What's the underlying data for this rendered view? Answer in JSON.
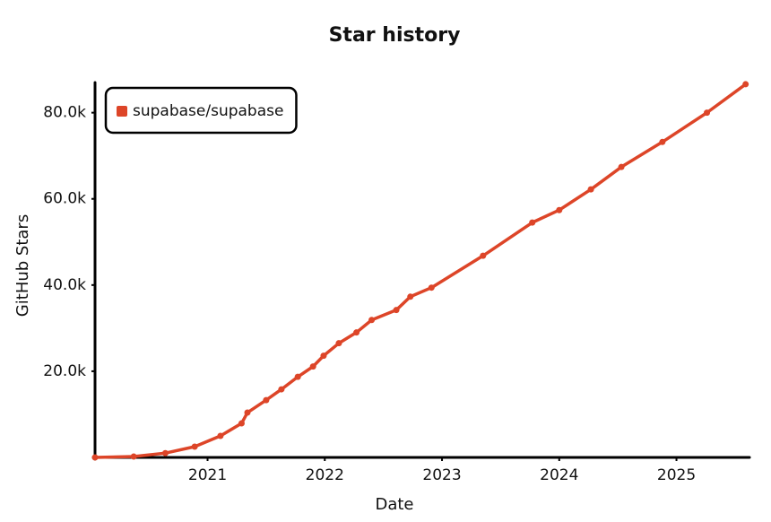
{
  "chart_data": {
    "type": "line",
    "title": "Star history",
    "x_label": "Date",
    "y_label": "GitHub Stars",
    "x": [
      2020.04,
      2020.37,
      2020.64,
      2020.89,
      2021.11,
      2021.29,
      2021.34,
      2021.5,
      2021.63,
      2021.77,
      2021.9,
      2021.99,
      2022.12,
      2022.27,
      2022.4,
      2022.61,
      2022.73,
      2022.91,
      2023.35,
      2023.77,
      2024.0,
      2024.27,
      2024.53,
      2024.88,
      2025.26,
      2025.59
    ],
    "series": [
      {
        "name": "supabase/supabase",
        "color": "#dd4528",
        "values": [
          0,
          200,
          1000,
          2500,
          5000,
          7900,
          10400,
          13300,
          15800,
          18700,
          21100,
          23600,
          26500,
          29000,
          31900,
          34200,
          37300,
          39400,
          46800,
          54500,
          57400,
          62200,
          67400,
          73200,
          80000,
          86600
        ]
      }
    ],
    "xlim": [
      2020.04,
      2025.6
    ],
    "xticks": [
      2021,
      2022,
      2023,
      2024,
      2025
    ],
    "ylim": [
      0,
      87000
    ],
    "yticks": [
      {
        "value": 20000,
        "label": "20.0k"
      },
      {
        "value": 40000,
        "label": "40.0k"
      },
      {
        "value": 60000,
        "label": "60.0k"
      },
      {
        "value": 80000,
        "label": "80.0k"
      }
    ],
    "legend": "top-left"
  }
}
